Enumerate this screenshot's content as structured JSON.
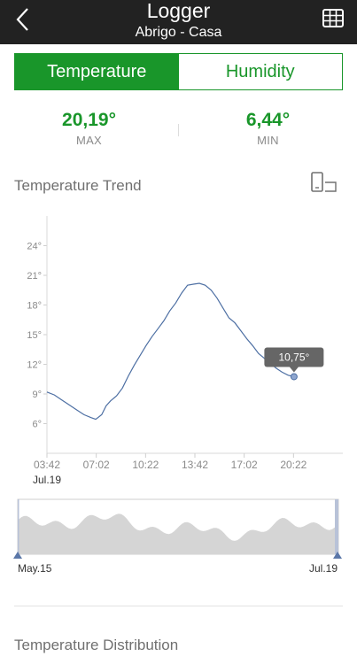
{
  "header": {
    "title": "Logger",
    "subtitle": "Abrigo - Casa"
  },
  "tabs": [
    {
      "label": "Temperature",
      "active": true
    },
    {
      "label": "Humidity",
      "active": false
    }
  ],
  "stats": {
    "max_value": "20,19°",
    "max_label": "MAX",
    "min_value": "6,44°",
    "min_label": "MIN"
  },
  "trend_section": {
    "title": "Temperature Trend"
  },
  "distribution_section": {
    "title": "Temperature Distribution"
  },
  "colors": {
    "accent": "#19962a",
    "topbar": "#222222",
    "line": "#4d6fa3",
    "tooltip": "#666666"
  },
  "icons": {
    "back": "chevron-left-icon",
    "table": "table-grid-icon",
    "rotate": "rotate-device-icon"
  },
  "chart_data": {
    "type": "line",
    "title": "",
    "xlabel": "",
    "ylabel": "",
    "date_label": "Jul.19",
    "x_tick_labels": [
      "03:42",
      "07:02",
      "10:22",
      "13:42",
      "17:02",
      "20:22"
    ],
    "x_tick_hours": [
      3.7,
      7.033,
      10.367,
      13.7,
      17.033,
      20.367
    ],
    "xlim_hours": [
      3.7,
      23.7
    ],
    "ylim": [
      3,
      27
    ],
    "yticks": [
      6,
      9,
      12,
      15,
      18,
      21,
      24
    ],
    "ytick_suffix": "°",
    "grid": false,
    "series": [
      {
        "x_hours": [
          3.7,
          4.2,
          4.7,
          5.2,
          5.7,
          6.2,
          6.7,
          7.0,
          7.4,
          7.7,
          8.0,
          8.4,
          8.8,
          9.2,
          9.6,
          10.0,
          10.4,
          10.8,
          11.2,
          11.6,
          12.0,
          12.4,
          12.8,
          13.2,
          13.6,
          14.0,
          14.4,
          14.8,
          15.2,
          15.6,
          16.0,
          16.4,
          16.8,
          17.2,
          17.6,
          18.0,
          18.4,
          18.8,
          19.2,
          19.6,
          20.0,
          20.4
        ],
        "y": [
          9.2,
          8.9,
          8.4,
          7.9,
          7.4,
          6.9,
          6.6,
          6.44,
          6.9,
          7.8,
          8.3,
          8.8,
          9.6,
          10.8,
          11.9,
          12.9,
          13.9,
          14.8,
          15.6,
          16.4,
          17.4,
          18.2,
          19.2,
          20.0,
          20.1,
          20.19,
          20.0,
          19.5,
          18.7,
          17.7,
          16.7,
          16.2,
          15.4,
          14.6,
          13.9,
          13.1,
          12.6,
          12.1,
          11.6,
          11.2,
          10.9,
          10.75
        ]
      }
    ],
    "tooltip_value": "10,75°",
    "navigator": {
      "start_label": "May.15",
      "end_label": "Jul.19"
    }
  }
}
